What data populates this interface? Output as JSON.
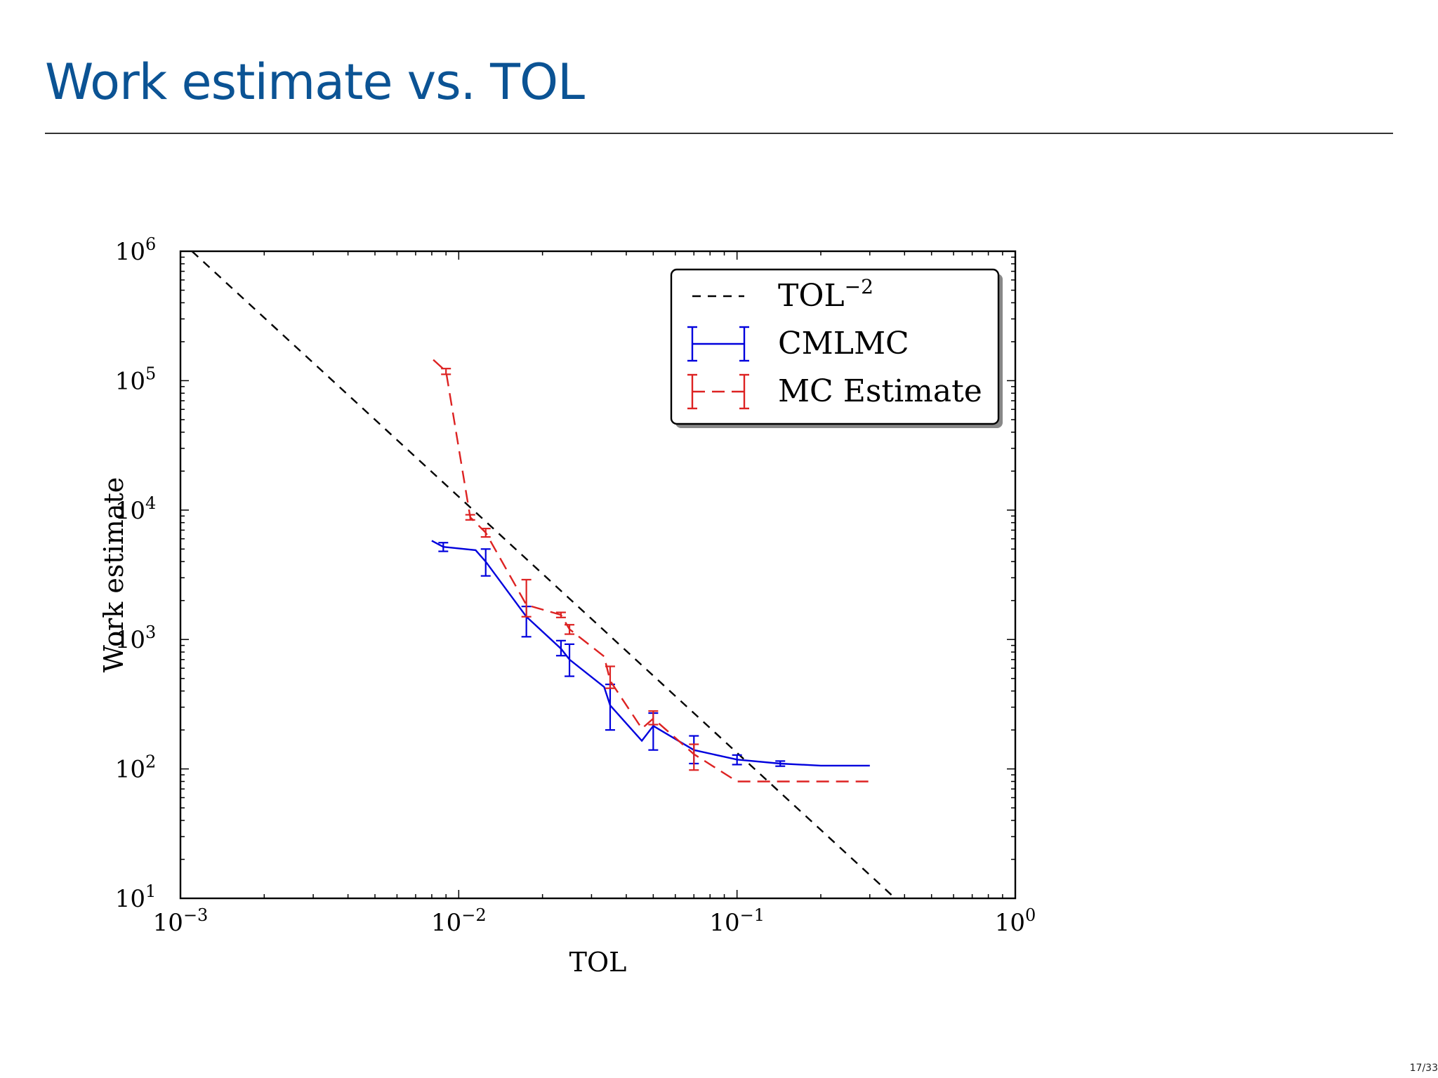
{
  "slide": {
    "title": "Work estimate vs. TOL",
    "page_number": "17/33"
  },
  "colors": {
    "title": "#0b5394",
    "cmlmc": "#0000dd",
    "mc": "#dd2222",
    "reference": "#000000"
  },
  "chart_data": {
    "type": "line",
    "xscale": "log",
    "yscale": "log",
    "xlim": [
      0.001,
      1
    ],
    "ylim": [
      10,
      1000000
    ],
    "xlabel": "TOL",
    "ylabel": "Work estimate",
    "xticks": [
      {
        "value": 0.001,
        "base": "10",
        "exp": "−3"
      },
      {
        "value": 0.01,
        "base": "10",
        "exp": "−2"
      },
      {
        "value": 0.1,
        "base": "10",
        "exp": "−1"
      },
      {
        "value": 1,
        "base": "10",
        "exp": "0"
      }
    ],
    "yticks": [
      {
        "value": 10,
        "base": "10",
        "exp": "1"
      },
      {
        "value": 100,
        "base": "10",
        "exp": "2"
      },
      {
        "value": 1000,
        "base": "10",
        "exp": "3"
      },
      {
        "value": 10000,
        "base": "10",
        "exp": "4"
      },
      {
        "value": 100000,
        "base": "10",
        "exp": "5"
      },
      {
        "value": 1000000,
        "base": "10",
        "exp": "6"
      }
    ],
    "legend": {
      "position": "top-right",
      "entries": [
        {
          "name": "TOL",
          "sup": "−2",
          "style": "dashed",
          "color": "#000000"
        },
        {
          "name": "CMLMC",
          "style": "solid-errorbar",
          "color": "#0000dd"
        },
        {
          "name": "MC Estimate",
          "style": "dashed-errorbar",
          "color": "#dd2222"
        }
      ]
    },
    "series": [
      {
        "name": "TOL^-2",
        "style": "dashed",
        "color": "#000000",
        "points": [
          [
            0.0011,
            1000000
          ],
          [
            0.37,
            10
          ]
        ]
      },
      {
        "name": "CMLMC",
        "style": "solid",
        "color": "#0000dd",
        "points": [
          {
            "x": 0.008,
            "y": 5800,
            "lo": null,
            "hi": null
          },
          {
            "x": 0.0088,
            "y": 5200,
            "lo": 4800,
            "hi": 5600
          },
          {
            "x": 0.0115,
            "y": 4900,
            "lo": null,
            "hi": null
          },
          {
            "x": 0.0125,
            "y": 4000,
            "lo": 3100,
            "hi": 5000
          },
          {
            "x": 0.0175,
            "y": 1500,
            "lo": 1050,
            "hi": 1800
          },
          {
            "x": 0.0233,
            "y": 850,
            "lo": 750,
            "hi": 980
          },
          {
            "x": 0.025,
            "y": 700,
            "lo": 520,
            "hi": 920
          },
          {
            "x": 0.0333,
            "y": 430,
            "lo": null,
            "hi": null
          },
          {
            "x": 0.035,
            "y": 310,
            "lo": 200,
            "hi": 450
          },
          {
            "x": 0.0455,
            "y": 165,
            "lo": null,
            "hi": null
          },
          {
            "x": 0.05,
            "y": 215,
            "lo": 140,
            "hi": 270
          },
          {
            "x": 0.07,
            "y": 140,
            "lo": 110,
            "hi": 180
          },
          {
            "x": 0.1,
            "y": 118,
            "lo": 108,
            "hi": 128
          },
          {
            "x": 0.143,
            "y": 110,
            "lo": 105,
            "hi": 115
          },
          {
            "x": 0.2,
            "y": 106,
            "lo": null,
            "hi": null
          },
          {
            "x": 0.3,
            "y": 106,
            "lo": null,
            "hi": null
          }
        ]
      },
      {
        "name": "MC Estimate",
        "style": "dashed",
        "color": "#dd2222",
        "points": [
          {
            "x": 0.0081,
            "y": 145000,
            "lo": null,
            "hi": null
          },
          {
            "x": 0.009,
            "y": 118000,
            "lo": 112000,
            "hi": 124000
          },
          {
            "x": 0.011,
            "y": 8800,
            "lo": 8400,
            "hi": 9200
          },
          {
            "x": 0.0125,
            "y": 6700,
            "lo": 6200,
            "hi": 7200
          },
          {
            "x": 0.0175,
            "y": 1850,
            "lo": 1500,
            "hi": 2900
          },
          {
            "x": 0.0233,
            "y": 1550,
            "lo": 1480,
            "hi": 1620
          },
          {
            "x": 0.025,
            "y": 1200,
            "lo": 1100,
            "hi": 1300
          },
          {
            "x": 0.0333,
            "y": 740,
            "lo": null,
            "hi": null
          },
          {
            "x": 0.035,
            "y": 480,
            "lo": 420,
            "hi": 620
          },
          {
            "x": 0.0455,
            "y": 205,
            "lo": null,
            "hi": null
          },
          {
            "x": 0.05,
            "y": 245,
            "lo": 220,
            "hi": 280
          },
          {
            "x": 0.07,
            "y": 130,
            "lo": 98,
            "hi": 155
          },
          {
            "x": 0.1,
            "y": 80,
            "lo": null,
            "hi": null
          },
          {
            "x": 0.143,
            "y": 80,
            "lo": null,
            "hi": null
          },
          {
            "x": 0.2,
            "y": 80,
            "lo": null,
            "hi": null
          },
          {
            "x": 0.3,
            "y": 80,
            "lo": null,
            "hi": null
          }
        ]
      }
    ]
  }
}
